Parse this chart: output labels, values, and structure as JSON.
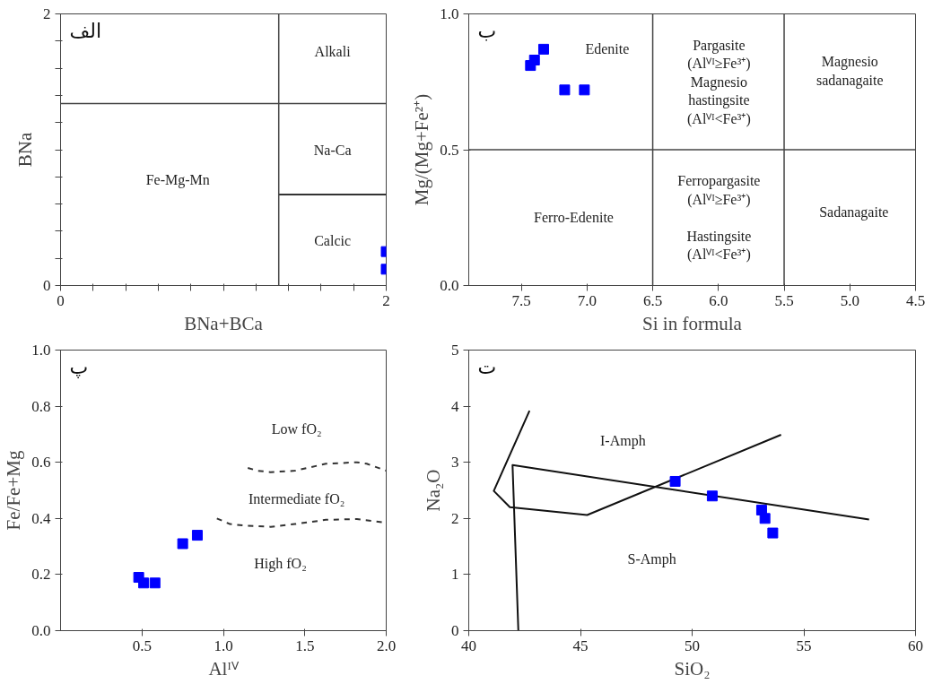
{
  "chart_data": [
    {
      "type": "scatter",
      "title": "الف",
      "xlabel": "BNa+BCa",
      "ylabel": "BNa",
      "xlim": [
        0,
        2
      ],
      "ylim": [
        0,
        2
      ],
      "xticks": [
        0,
        {
          "value": 0.2,
          "label": null
        },
        {
          "value": 0.4,
          "label": null
        },
        {
          "value": 0.6,
          "label": null
        },
        {
          "value": 0.8,
          "label": null
        },
        {
          "value": 1.0,
          "label": null
        },
        {
          "value": 1.2,
          "label": null
        },
        {
          "value": 1.4,
          "label": null
        },
        {
          "value": 1.6,
          "label": null
        },
        {
          "value": 1.8,
          "label": null
        },
        2
      ],
      "yticks": [
        0,
        {
          "value": 0.2,
          "label": null
        },
        {
          "value": 0.4,
          "label": null
        },
        {
          "value": 0.6,
          "label": null
        },
        {
          "value": 0.8,
          "label": null
        },
        {
          "value": 1.0,
          "label": null
        },
        {
          "value": 1.2,
          "label": null
        },
        {
          "value": 1.4,
          "label": null
        },
        {
          "value": 1.6,
          "label": null
        },
        {
          "value": 1.8,
          "label": null
        },
        2
      ],
      "ref_lines": [
        {
          "axis": "x",
          "value": 1.34
        },
        {
          "axis": "y",
          "value": 1.34
        }
      ],
      "series": [
        {
          "type": "line",
          "color": "#333333",
          "x": [
            1.34,
            2
          ],
          "values": [
            0.67,
            0.67
          ]
        },
        {
          "color": "#0000ff",
          "marker": "square",
          "x": [
            2,
            2
          ],
          "values": [
            0.25,
            0.12
          ]
        }
      ],
      "annotations": [
        "Alkali",
        "Na-Ca",
        "Fe-Mg-Mn",
        "Calcic"
      ]
    },
    {
      "type": "scatter",
      "title": "ب",
      "xlabel": "Si in formula",
      "ylabel": "Mg/(Mg+Fe²⁺)",
      "xlim": [
        7.9,
        4.5
      ],
      "ylim": [
        0.0,
        1.0
      ],
      "xticks": [
        7.5,
        {
          "value": 7,
          "label": "7.0"
        },
        6.5,
        {
          "value": 6,
          "label": "6.0"
        },
        5.5,
        {
          "value": 5,
          "label": "5.0"
        },
        4.5
      ],
      "yticks": [
        {
          "value": 0,
          "label": "0.0"
        },
        0.5,
        {
          "value": 1,
          "label": "1.0"
        }
      ],
      "ref_lines": [
        {
          "axis": "x",
          "value": 6.5
        },
        {
          "axis": "x",
          "value": 5.5
        },
        {
          "axis": "y",
          "value": 0.5
        }
      ],
      "series": [
        {
          "color": "#0000ff",
          "marker": "square",
          "x": [
            7.43,
            7.4,
            7.33,
            7.17,
            7.02
          ],
          "values": [
            0.81,
            0.83,
            0.87,
            0.72,
            0.72
          ]
        }
      ],
      "annotations": [
        "Edenite",
        "Pargasite\n(Alⱽᴵ≥Fe³⁺)\nMagnesio\nhastingsite\n(Alⱽᴵ<Fe³⁺)",
        "Magnesio\nsadanagaite",
        "Ferro-Edenite",
        "Ferropargasite\n(Alⱽᴵ≥Fe³⁺)\n\nHastingsite\n(Alⱽᴵ<Fe³⁺)",
        "Sadanagaite"
      ]
    },
    {
      "type": "scatter",
      "title": "پ",
      "xlabel": "Alᴵⱽ",
      "ylabel": "Fe/Fe+Mg",
      "xlim": [
        0,
        2
      ],
      "ylim": [
        0,
        1
      ],
      "xticks": [
        0.5,
        {
          "value": 1,
          "label": "1.0"
        },
        1.5,
        {
          "value": 2,
          "label": "2.0"
        }
      ],
      "yticks": [
        {
          "value": 0,
          "label": "0.0"
        },
        0.2,
        0.4,
        0.6,
        0.8,
        {
          "value": 1,
          "label": "1.0"
        }
      ],
      "series": [
        {
          "type": "line",
          "color": "#333333",
          "line_style": "dashed",
          "x": [
            1.15,
            1.21,
            1.29,
            1.44,
            1.63,
            1.82,
            1.88,
            2.0
          ],
          "values": [
            0.58,
            0.57,
            0.565,
            0.57,
            0.595,
            0.6,
            0.595,
            0.57
          ]
        },
        {
          "type": "line",
          "color": "#333333",
          "line_style": "dashed",
          "x": [
            0.96,
            1.04,
            1.12,
            1.29,
            1.44,
            1.63,
            1.82,
            2.0
          ],
          "values": [
            0.4,
            0.38,
            0.375,
            0.37,
            0.38,
            0.395,
            0.398,
            0.385
          ]
        },
        {
          "color": "#0000ff",
          "marker": "square",
          "x": [
            0.48,
            0.51,
            0.58,
            0.75,
            0.84
          ],
          "values": [
            0.19,
            0.17,
            0.17,
            0.31,
            0.34
          ]
        }
      ],
      "annotations": [
        "Low fO₂",
        "Intermediate fO₂",
        "High fO₂"
      ]
    },
    {
      "type": "scatter",
      "title": "ت",
      "xlabel": "SiO₂",
      "ylabel": "Na₂O",
      "xlim": [
        40,
        60
      ],
      "ylim": [
        0,
        5
      ],
      "xticks": [
        40,
        45,
        50,
        55,
        60
      ],
      "yticks": [
        0,
        1,
        2,
        3,
        4,
        5
      ],
      "series": [
        {
          "type": "line",
          "color": "#111111",
          "x": [
            42.72,
            41.12,
            41.84,
            45.3,
            53.98
          ],
          "values": [
            3.92,
            2.49,
            2.2,
            2.06,
            3.49
          ]
        },
        {
          "type": "line",
          "color": "#111111",
          "x": [
            42.22,
            41.96,
            57.92
          ],
          "values": [
            0,
            2.95,
            1.98
          ]
        },
        {
          "color": "#0000ff",
          "marker": "square",
          "x": [
            49.24,
            50.9,
            53.11,
            53.26,
            53.61
          ],
          "values": [
            2.66,
            2.4,
            2.15,
            2.0,
            1.74
          ]
        }
      ],
      "annotations": [
        "I-Amph",
        "S-Amph"
      ]
    }
  ]
}
